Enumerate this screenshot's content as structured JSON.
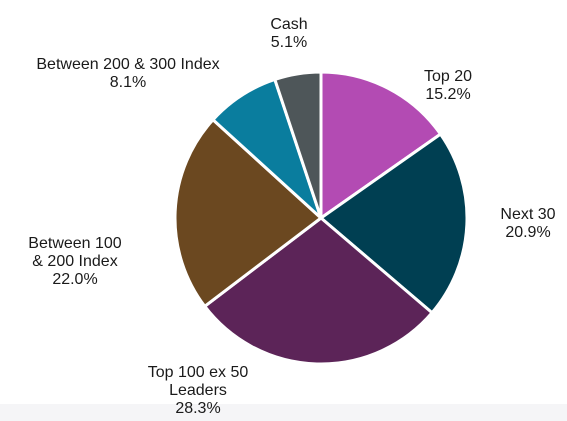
{
  "chart_data": {
    "type": "pie",
    "slices": [
      {
        "label": [
          "Top 20"
        ],
        "value_label": "15.2%",
        "value": 15.2,
        "color": "#b34bb3"
      },
      {
        "label": [
          "Next 30"
        ],
        "value_label": "20.9%",
        "value": 20.9,
        "color": "#003f52"
      },
      {
        "label": [
          "Top 100 ex 50",
          "Leaders"
        ],
        "value_label": "28.3%",
        "value": 28.3,
        "color": "#5c2458"
      },
      {
        "label": [
          "Between 100",
          "& 200 Index"
        ],
        "value_label": "22.0%",
        "value": 22.0,
        "color": "#6b4820"
      },
      {
        "label": [
          "Between 200 & 300 Index"
        ],
        "value_label": "8.1%",
        "value": 8.1,
        "color": "#0a7d9e"
      },
      {
        "label": [
          "Cash"
        ],
        "value_label": "5.1%",
        "value": 5.1,
        "color": "#4e5659"
      }
    ]
  }
}
